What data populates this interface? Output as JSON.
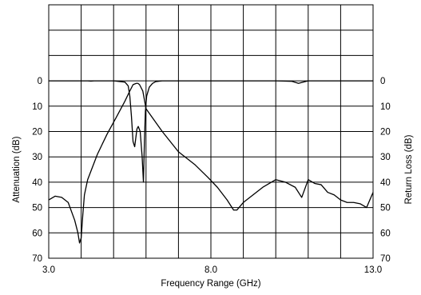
{
  "chart_data": {
    "type": "line",
    "title": "",
    "xlabel": "Frequency Range (GHz)",
    "ylabel_left": "Attenuation (dB)",
    "ylabel_right": "Return Loss (dB)",
    "xlim": [
      3.0,
      13.0
    ],
    "x_tick_labels": [
      {
        "value": 3.0,
        "label": "3.0"
      },
      {
        "value": 8.0,
        "label": "8.0"
      },
      {
        "value": 13.0,
        "label": "13.0"
      }
    ],
    "y_reversed": true,
    "ylim": [
      0,
      70
    ],
    "y_ticks": [
      0,
      10,
      20,
      30,
      40,
      50,
      60,
      70
    ],
    "y_tick_labels": [
      "0",
      "10",
      "20",
      "30",
      "40",
      "50",
      "60",
      "70"
    ],
    "x_grid": [
      3,
      4,
      5,
      6,
      7,
      8,
      9,
      10,
      11,
      12,
      13
    ],
    "y_grid": [
      -30,
      -20,
      -10,
      0,
      10,
      20,
      30,
      40,
      50,
      60,
      70
    ],
    "grid": true,
    "legend": "none",
    "series_color": "#000000",
    "series": [
      {
        "name": "",
        "x": [
          3.0,
          3.2,
          3.4,
          3.6,
          3.8,
          3.9,
          3.95,
          4.0,
          4.05,
          4.1,
          4.2,
          4.35,
          4.5,
          4.8,
          5.1,
          5.35,
          5.5,
          5.6,
          5.7,
          5.75,
          5.8,
          5.9,
          6.0,
          6.5,
          7.0,
          7.5,
          7.9,
          8.2,
          8.5,
          8.7,
          8.8,
          9.0,
          9.3,
          9.6,
          10.0,
          10.3,
          10.6,
          10.8,
          11.0,
          11.2,
          11.4,
          11.6,
          11.8,
          12.0,
          12.2,
          12.4,
          12.6,
          12.8,
          13.0
        ],
        "values": [
          47,
          45.5,
          46,
          48,
          55,
          60,
          64,
          62,
          53,
          45,
          39,
          34,
          29,
          21,
          14,
          8,
          4,
          1.5,
          1,
          1,
          1.5,
          4,
          11,
          20,
          28,
          33,
          38,
          42,
          47,
          51,
          51,
          48,
          45,
          42,
          39,
          40,
          42,
          46,
          39,
          40.5,
          41,
          44,
          45,
          47,
          48,
          48,
          48.5,
          50,
          44
        ]
      },
      {
        "name": "",
        "x": [
          3.0,
          4.0,
          4.2,
          4.3,
          4.4,
          5.0,
          5.35,
          5.45,
          5.5,
          5.55,
          5.6,
          5.65,
          5.68,
          5.72,
          5.76,
          5.82,
          5.88,
          5.92,
          5.95,
          5.98,
          6.02,
          6.1,
          6.2,
          6.3,
          6.5,
          7.0,
          8.0,
          9.0,
          10.0,
          10.5,
          10.7,
          11.0,
          12.0,
          13.0
        ],
        "values": [
          0,
          0,
          0,
          0.1,
          0,
          0,
          0.5,
          2,
          6,
          14,
          24,
          26,
          23,
          19,
          18,
          20,
          30,
          40,
          24,
          12,
          6,
          2.5,
          1,
          0.3,
          0,
          0,
          0,
          0,
          0,
          0.2,
          1,
          0,
          0,
          0
        ]
      }
    ]
  }
}
